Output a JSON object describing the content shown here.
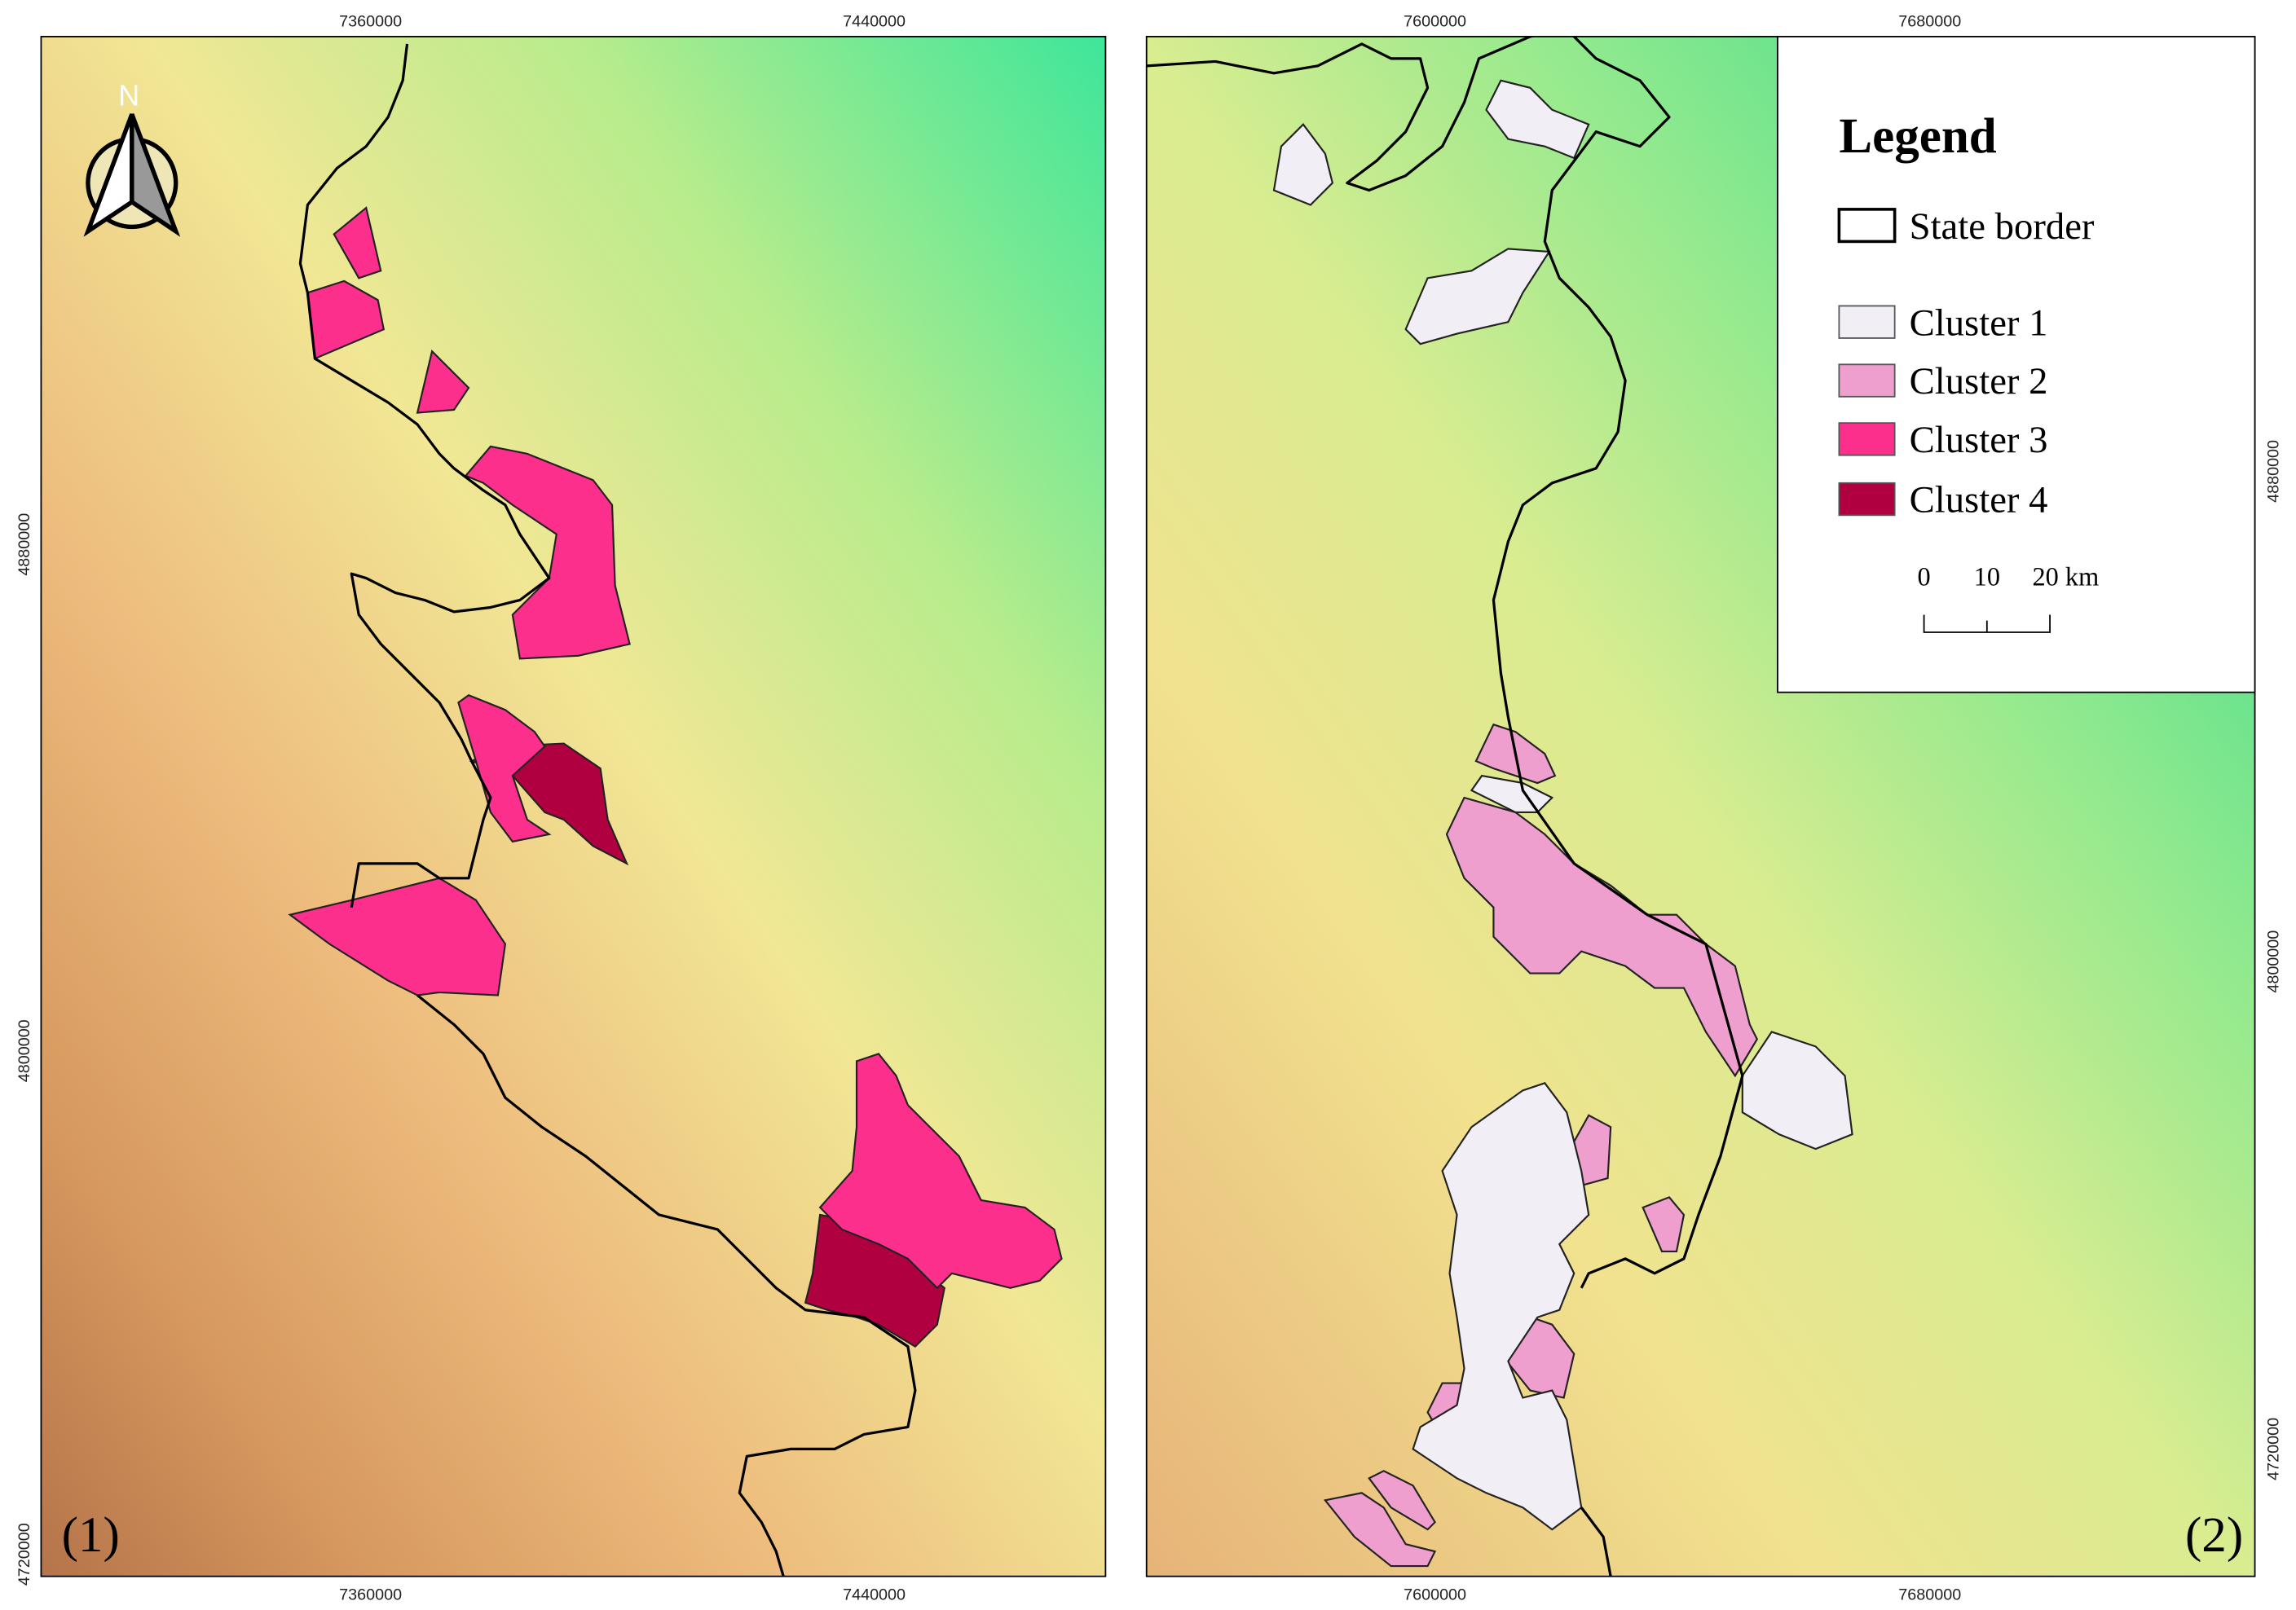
{
  "maps": [
    {
      "label": "(1)",
      "top_ticks": [
        7360000,
        7440000
      ],
      "bottom_ticks": [
        7360000,
        7440000
      ],
      "side_ticks": [
        4880000,
        4800000,
        4720000
      ],
      "north": "N"
    },
    {
      "label": "(2)",
      "top_ticks": [
        7600000,
        7680000
      ],
      "bottom_ticks": [
        7600000,
        7680000
      ],
      "side_ticks": [
        4880000,
        4800000,
        4720000
      ]
    }
  ],
  "legend": {
    "title": "Legend",
    "border": "State border",
    "clusters": [
      "Cluster 1",
      "Cluster 2",
      "Cluster 3",
      "Cluster 4"
    ],
    "scale": [
      "0",
      "10",
      "20 km"
    ]
  }
}
